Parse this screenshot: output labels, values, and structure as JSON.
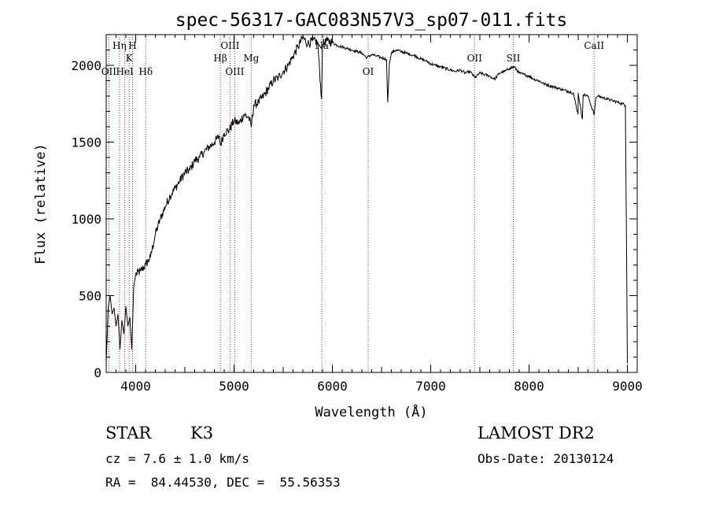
{
  "chart_data": {
    "type": "line",
    "title": "spec-56317-GAC083N57V3_sp07-011.fits",
    "xlabel": "Wavelength (Å)",
    "ylabel": "Flux (relative)",
    "xlim": [
      3700,
      9100
    ],
    "ylim": [
      0,
      2200
    ],
    "x_ticks": [
      4000,
      5000,
      6000,
      7000,
      8000,
      9000
    ],
    "y_ticks": [
      0,
      500,
      1000,
      1500,
      2000
    ],
    "grid": false,
    "legend": "none",
    "series": [
      {
        "x": [
          3700,
          3720,
          3740,
          3760,
          3780,
          3800,
          3820,
          3840,
          3860,
          3880,
          3900,
          3920,
          3940,
          3960,
          3980,
          4000,
          4050,
          4100,
          4150,
          4200,
          4250,
          4300,
          4350,
          4400,
          4450,
          4500,
          4550,
          4600,
          4650,
          4700,
          4750,
          4800,
          4850,
          4861,
          4900,
          4950,
          5000,
          5050,
          5100,
          5150,
          5175,
          5200,
          5250,
          5300,
          5350,
          5400,
          5450,
          5500,
          5550,
          5600,
          5650,
          5700,
          5750,
          5800,
          5850,
          5890,
          5895,
          5900,
          5950,
          6000,
          6050,
          6100,
          6150,
          6200,
          6250,
          6300,
          6350,
          6400,
          6450,
          6500,
          6550,
          6563,
          6580,
          6600,
          6650,
          6700,
          6750,
          6800,
          6850,
          6900,
          6950,
          7000,
          7050,
          7100,
          7150,
          7200,
          7250,
          7300,
          7350,
          7400,
          7450,
          7500,
          7550,
          7600,
          7650,
          7700,
          7750,
          7800,
          7850,
          7900,
          7950,
          8000,
          8050,
          8100,
          8150,
          8200,
          8250,
          8300,
          8350,
          8400,
          8450,
          8498,
          8500,
          8542,
          8550,
          8600,
          8662,
          8680,
          8700,
          8750,
          8800,
          8850,
          8900,
          8950,
          8980,
          9000
        ],
        "values": [
          60,
          420,
          500,
          380,
          420,
          300,
          380,
          150,
          340,
          250,
          430,
          300,
          360,
          150,
          560,
          640,
          660,
          700,
          750,
          900,
          1000,
          1080,
          1150,
          1200,
          1250,
          1300,
          1320,
          1380,
          1400,
          1440,
          1470,
          1500,
          1540,
          1480,
          1560,
          1580,
          1640,
          1620,
          1680,
          1660,
          1600,
          1740,
          1760,
          1800,
          1850,
          1900,
          1920,
          1960,
          2000,
          2060,
          2120,
          2180,
          2140,
          2160,
          2150,
          1780,
          1950,
          2140,
          2160,
          2150,
          2130,
          2120,
          2110,
          2100,
          2090,
          2080,
          2050,
          2070,
          2060,
          2050,
          2040,
          1760,
          2010,
          2080,
          2100,
          2090,
          2080,
          2070,
          2060,
          2040,
          2030,
          2010,
          2000,
          1990,
          1980,
          1970,
          1960,
          1970,
          1950,
          1960,
          1920,
          1950,
          1940,
          1930,
          1910,
          1950,
          1960,
          1980,
          1990,
          1950,
          1940,
          1930,
          1910,
          1900,
          1880,
          1870,
          1860,
          1850,
          1840,
          1830,
          1820,
          1680,
          1820,
          1650,
          1810,
          1800,
          1680,
          1790,
          1800,
          1790,
          1780,
          1770,
          1760,
          1750,
          1740,
          60
        ]
      }
    ],
    "lines": [
      {
        "x": 3727,
        "label": "OII",
        "row": 3
      },
      {
        "x": 3835,
        "label": "Hη",
        "row": 1
      },
      {
        "x": 3889,
        "label": "HeI",
        "row": 3
      },
      {
        "x": 3934,
        "label": "K",
        "row": 2
      },
      {
        "x": 3968,
        "label": "H",
        "row": 1
      },
      {
        "x": 4102,
        "label": "Hδ",
        "row": 3
      },
      {
        "x": 4861,
        "label": "Hβ",
        "row": 2
      },
      {
        "x": 4959,
        "label": "OIII",
        "row": 1
      },
      {
        "x": 5007,
        "label": "OIII",
        "row": 3
      },
      {
        "x": 5175,
        "label": "Mg",
        "row": 2
      },
      {
        "x": 5893,
        "label": "Na",
        "row": 1
      },
      {
        "x": 6364,
        "label": "OI",
        "row": 3
      },
      {
        "x": 7446,
        "label": "OII",
        "row": 2
      },
      {
        "x": 7840,
        "label": "SII",
        "row": 2
      },
      {
        "x": 8662,
        "label": "CaII",
        "row": 1
      }
    ]
  },
  "info": {
    "class": "STAR",
    "subclass": "K3",
    "survey": "LAMOST DR2",
    "cz": "cz = 7.6 ± 1.0 km/s",
    "obs_date": "Obs-Date: 20130124",
    "radec": "RA =  84.44530, DEC =  55.56353"
  }
}
